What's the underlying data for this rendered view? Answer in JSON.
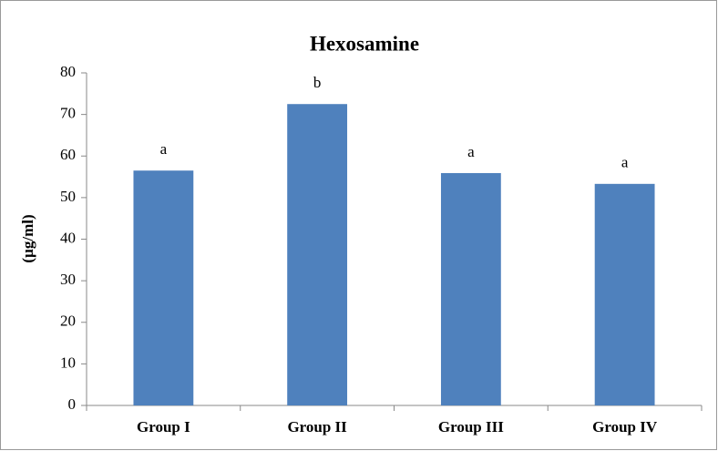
{
  "chart_data": {
    "type": "bar",
    "title": "Hexosamine",
    "y_label": "(µg/ml)",
    "categories": [
      "Group I",
      "Group II",
      "Group III",
      "Group IV"
    ],
    "values": [
      56.5,
      72.5,
      55.9,
      53.3
    ],
    "annotations": [
      "a",
      "b",
      "a",
      "a"
    ],
    "color": "#4f81bd",
    "ylim": [
      0,
      80
    ],
    "yticks": [
      0,
      10,
      20,
      30,
      40,
      50,
      60,
      70,
      80
    ],
    "grid": false
  }
}
